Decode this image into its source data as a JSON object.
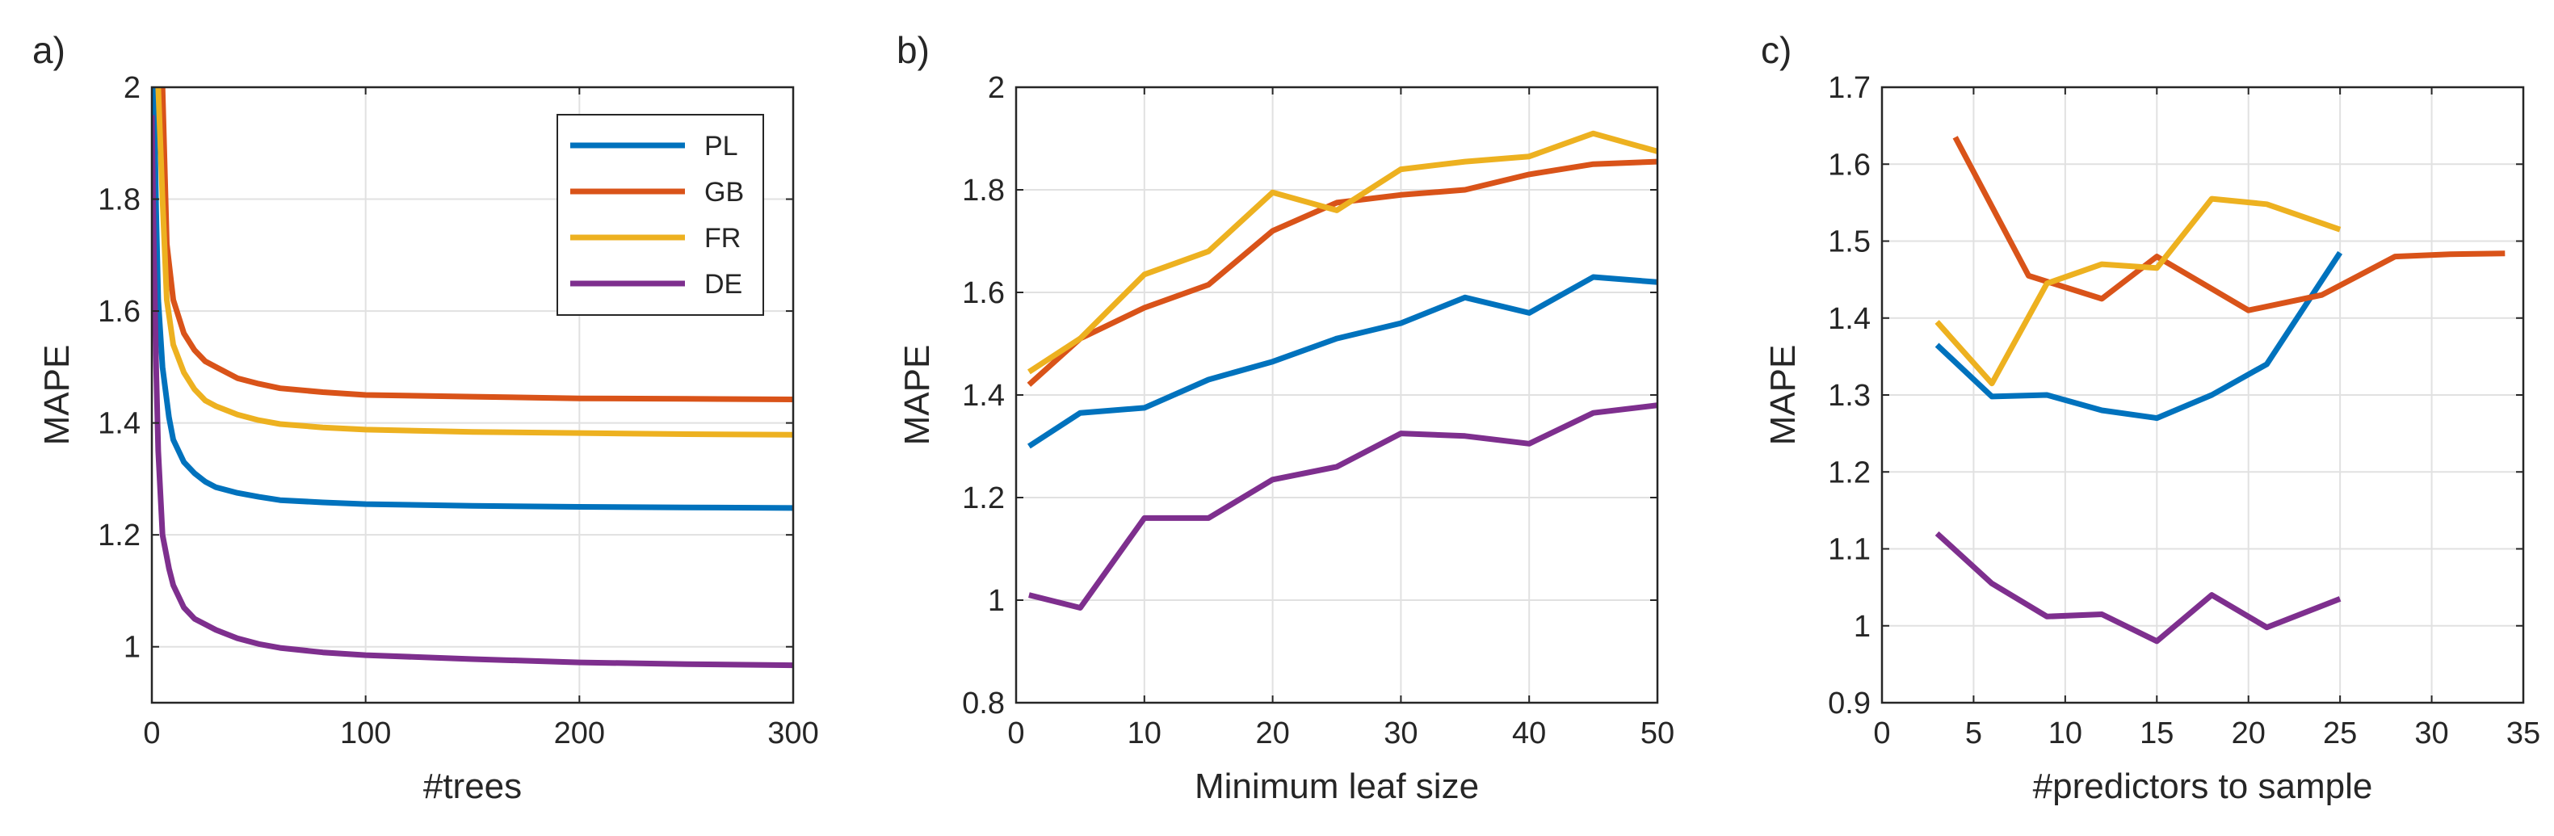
{
  "colors": {
    "PL": "#0072BD",
    "GB": "#D95319",
    "FR": "#EDB120",
    "DE": "#7E2F8E"
  },
  "chart_data": [
    {
      "type": "line",
      "panel_label": "a)",
      "title": "",
      "xlabel": "#trees",
      "ylabel": "MAPE",
      "xlim": [
        0,
        300
      ],
      "ylim": [
        0.9,
        2.0
      ],
      "xticks": [
        0,
        100,
        200,
        300
      ],
      "xtick_labels": [
        "0",
        "100",
        "200",
        "300"
      ],
      "yticks": [
        1.0,
        1.2,
        1.4,
        1.6,
        1.8,
        2.0
      ],
      "ytick_labels": [
        "1",
        "1.2",
        "1.4",
        "1.6",
        "1.8",
        "2"
      ],
      "grid": true,
      "legend": {
        "location": "top-right",
        "entries": [
          "PL",
          "GB",
          "FR",
          "DE"
        ]
      },
      "series": [
        {
          "name": "PL",
          "x": [
            1,
            2,
            3,
            5,
            8,
            10,
            15,
            20,
            25,
            30,
            40,
            50,
            60,
            80,
            100,
            150,
            200,
            250,
            300
          ],
          "y": [
            2.0,
            1.78,
            1.62,
            1.5,
            1.41,
            1.37,
            1.33,
            1.31,
            1.295,
            1.285,
            1.275,
            1.268,
            1.262,
            1.258,
            1.255,
            1.252,
            1.25,
            1.249,
            1.248
          ]
        },
        {
          "name": "GB",
          "x": [
            5,
            7,
            10,
            15,
            20,
            25,
            30,
            40,
            50,
            60,
            80,
            100,
            150,
            200,
            250,
            300
          ],
          "y": [
            2.0,
            1.72,
            1.62,
            1.56,
            1.53,
            1.51,
            1.5,
            1.48,
            1.47,
            1.462,
            1.455,
            1.45,
            1.447,
            1.444,
            1.443,
            1.442
          ]
        },
        {
          "name": "FR",
          "x": [
            3,
            5,
            7,
            10,
            15,
            20,
            25,
            30,
            40,
            50,
            60,
            80,
            100,
            150,
            200,
            250,
            300
          ],
          "y": [
            2.0,
            1.8,
            1.62,
            1.54,
            1.49,
            1.46,
            1.44,
            1.43,
            1.415,
            1.405,
            1.398,
            1.392,
            1.388,
            1.384,
            1.382,
            1.38,
            1.379
          ]
        },
        {
          "name": "DE",
          "x": [
            0,
            1,
            2,
            3,
            5,
            8,
            10,
            15,
            20,
            25,
            30,
            40,
            50,
            60,
            80,
            100,
            150,
            200,
            250,
            300
          ],
          "y": [
            1.95,
            1.7,
            1.5,
            1.35,
            1.2,
            1.14,
            1.11,
            1.07,
            1.05,
            1.04,
            1.03,
            1.015,
            1.005,
            0.998,
            0.99,
            0.985,
            0.978,
            0.972,
            0.969,
            0.967
          ]
        }
      ]
    },
    {
      "type": "line",
      "panel_label": "b)",
      "title": "",
      "xlabel": "Minimum leaf size",
      "ylabel": "MAPE",
      "xlim": [
        0,
        50
      ],
      "ylim": [
        0.8,
        2.0
      ],
      "xticks": [
        0,
        10,
        20,
        30,
        40,
        50
      ],
      "xtick_labels": [
        "0",
        "10",
        "20",
        "30",
        "40",
        "50"
      ],
      "yticks": [
        0.8,
        1.0,
        1.2,
        1.4,
        1.6,
        1.8,
        2.0
      ],
      "ytick_labels": [
        "0.8",
        "1",
        "1.2",
        "1.4",
        "1.6",
        "1.8",
        "2"
      ],
      "grid": true,
      "series": [
        {
          "name": "PL",
          "x": [
            1,
            5,
            10,
            15,
            20,
            25,
            30,
            35,
            40,
            45,
            50
          ],
          "y": [
            1.3,
            1.365,
            1.375,
            1.43,
            1.465,
            1.51,
            1.54,
            1.59,
            1.56,
            1.63,
            1.62
          ]
        },
        {
          "name": "GB",
          "x": [
            1,
            5,
            10,
            15,
            20,
            25,
            30,
            35,
            40,
            45,
            50
          ],
          "y": [
            1.42,
            1.51,
            1.57,
            1.615,
            1.72,
            1.775,
            1.79,
            1.8,
            1.83,
            1.85,
            1.855
          ]
        },
        {
          "name": "FR",
          "x": [
            1,
            5,
            10,
            15,
            20,
            25,
            30,
            35,
            40,
            45,
            50
          ],
          "y": [
            1.445,
            1.51,
            1.635,
            1.68,
            1.795,
            1.76,
            1.84,
            1.855,
            1.865,
            1.91,
            1.875
          ]
        },
        {
          "name": "DE",
          "x": [
            1,
            5,
            10,
            15,
            20,
            25,
            30,
            35,
            40,
            45,
            50
          ],
          "y": [
            1.01,
            0.985,
            1.16,
            1.16,
            1.235,
            1.26,
            1.325,
            1.32,
            1.305,
            1.365,
            1.38
          ]
        }
      ]
    },
    {
      "type": "line",
      "panel_label": "c)",
      "title": "",
      "xlabel": "#predictors to sample",
      "ylabel": "MAPE",
      "xlim": [
        0,
        35
      ],
      "ylim": [
        0.9,
        1.7
      ],
      "xticks": [
        0,
        5,
        10,
        15,
        20,
        25,
        30,
        35
      ],
      "xtick_labels": [
        "0",
        "5",
        "10",
        "15",
        "20",
        "25",
        "30",
        "35"
      ],
      "yticks": [
        0.9,
        1.0,
        1.1,
        1.2,
        1.3,
        1.4,
        1.5,
        1.6,
        1.7
      ],
      "ytick_labels": [
        "0.9",
        "1",
        "1.1",
        "1.2",
        "1.3",
        "1.4",
        "1.5",
        "1.6",
        "1.7"
      ],
      "grid": true,
      "series": [
        {
          "name": "PL",
          "x": [
            3,
            6,
            9,
            12,
            15,
            18,
            21,
            25
          ],
          "y": [
            1.365,
            1.298,
            1.3,
            1.28,
            1.27,
            1.3,
            1.34,
            1.485
          ]
        },
        {
          "name": "GB",
          "x": [
            4,
            8,
            12,
            15,
            20,
            24,
            28,
            31,
            34
          ],
          "y": [
            1.635,
            1.455,
            1.425,
            1.48,
            1.41,
            1.43,
            1.48,
            1.483,
            1.484
          ]
        },
        {
          "name": "FR",
          "x": [
            3,
            6,
            9,
            12,
            15,
            18,
            21,
            25
          ],
          "y": [
            1.395,
            1.315,
            1.445,
            1.47,
            1.465,
            1.555,
            1.548,
            1.515
          ]
        },
        {
          "name": "DE",
          "x": [
            3,
            6,
            9,
            12,
            15,
            18,
            21,
            25
          ],
          "y": [
            1.12,
            1.055,
            1.012,
            1.015,
            0.98,
            1.04,
            0.998,
            1.035
          ]
        }
      ]
    }
  ]
}
